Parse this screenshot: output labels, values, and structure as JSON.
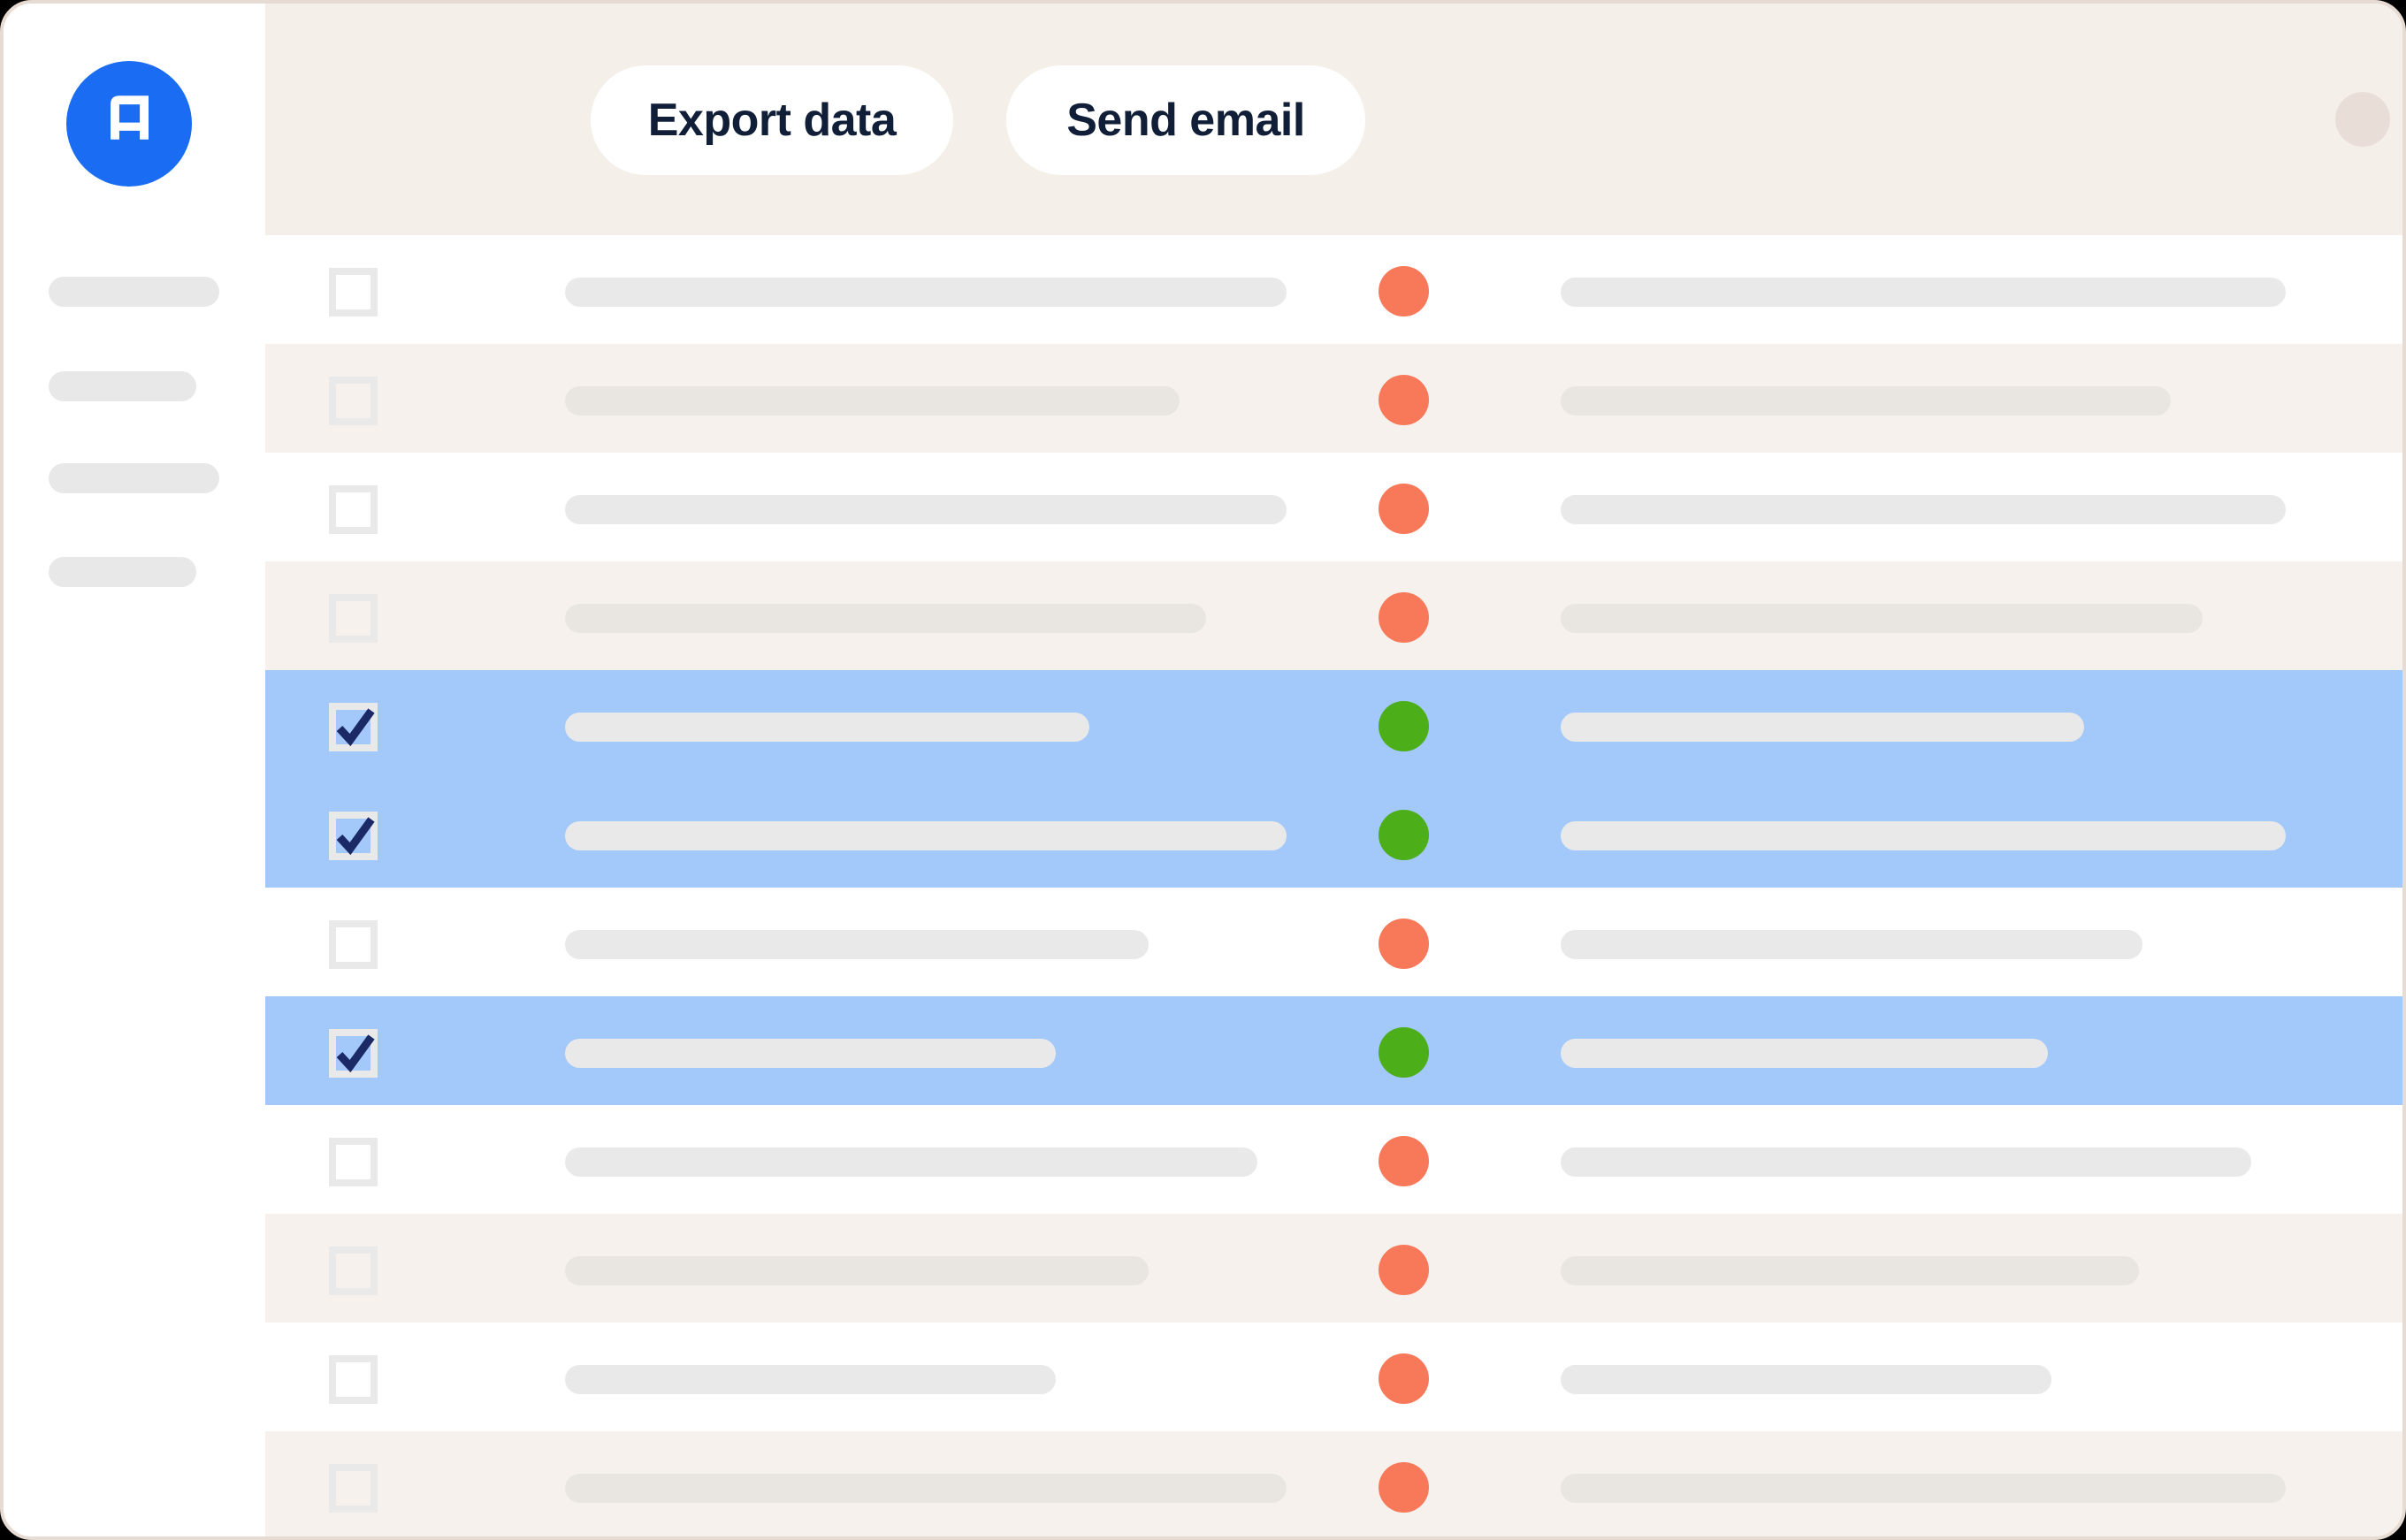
{
  "window": {
    "outside_bg": "#000000",
    "card_bg": "#ffffff",
    "card_border_color": "#e7dcd3"
  },
  "logo": {
    "letter": "A",
    "bg_color": "#1a6cf3",
    "letter_color": "#ffffff"
  },
  "header": {
    "bg_color": "#f4efe9",
    "button_bg": "#ffffff",
    "button_text_color": "#111e38",
    "buttons": [
      {
        "label": "Export data"
      },
      {
        "label": "Send email"
      }
    ],
    "menu_dots": {
      "count": 3,
      "color": "#e8ded7"
    }
  },
  "sidebar": {
    "bg_color": "#ffffff",
    "item_color": "#e8e8e8",
    "items": [
      {
        "width": 193
      },
      {
        "width": 167
      },
      {
        "width": 193
      },
      {
        "width": 167
      }
    ]
  },
  "table": {
    "colors": {
      "row_white": "#ffffff",
      "row_zebra": "#f6f1ec",
      "row_selected": "#a3c8fa",
      "bar": "#e9e9e9",
      "bar_on_zebra": "#e9e6e2",
      "checkbox_border": "#e9e9e9",
      "checkmark": "#1b2a66",
      "status_ok": "#4cae18",
      "status_alert": "#f8795a"
    },
    "rows": [
      {
        "zebra": false,
        "selected": false,
        "checked": false,
        "status": "alert",
        "bar1_width": 816,
        "bar2_width": 820
      },
      {
        "zebra": true,
        "selected": false,
        "checked": false,
        "status": "alert",
        "bar1_width": 695,
        "bar2_width": 690
      },
      {
        "zebra": false,
        "selected": false,
        "checked": false,
        "status": "alert",
        "bar1_width": 816,
        "bar2_width": 820
      },
      {
        "zebra": true,
        "selected": false,
        "checked": false,
        "status": "alert",
        "bar1_width": 725,
        "bar2_width": 726
      },
      {
        "zebra": false,
        "selected": true,
        "checked": true,
        "status": "ok",
        "bar1_width": 593,
        "bar2_width": 592
      },
      {
        "zebra": true,
        "selected": true,
        "checked": true,
        "status": "ok",
        "bar1_width": 816,
        "bar2_width": 820
      },
      {
        "zebra": false,
        "selected": false,
        "checked": false,
        "status": "alert",
        "bar1_width": 660,
        "bar2_width": 658
      },
      {
        "zebra": true,
        "selected": true,
        "checked": true,
        "status": "ok",
        "bar1_width": 555,
        "bar2_width": 551
      },
      {
        "zebra": false,
        "selected": false,
        "checked": false,
        "status": "alert",
        "bar1_width": 783,
        "bar2_width": 781
      },
      {
        "zebra": true,
        "selected": false,
        "checked": false,
        "status": "alert",
        "bar1_width": 660,
        "bar2_width": 654
      },
      {
        "zebra": false,
        "selected": false,
        "checked": false,
        "status": "alert",
        "bar1_width": 555,
        "bar2_width": 555
      },
      {
        "zebra": true,
        "selected": false,
        "checked": false,
        "status": "alert",
        "bar1_width": 816,
        "bar2_width": 820
      }
    ]
  }
}
